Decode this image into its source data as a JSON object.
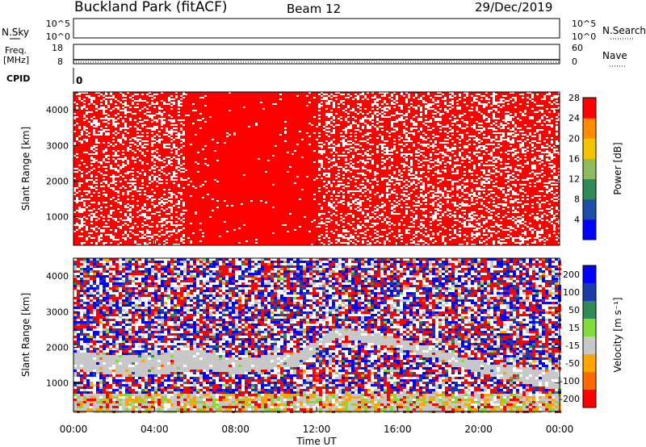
{
  "header": {
    "station": "Buckland Park (fitACF)",
    "beam": "Beam 12",
    "date": "29/Dec/2019"
  },
  "top_panels": {
    "nsky_label": "N.Sky",
    "nsky_ticks": [
      "10^5",
      "10^0"
    ],
    "nsearch_label": "N.Search",
    "nsearch_ticks": [
      "10^5",
      "10^0"
    ],
    "freq_label": "Freq.",
    "freq_unit": "[MHz]",
    "freq_ticks": [
      "18",
      "8"
    ],
    "nave_label": "Nave",
    "nave_ticks": [
      "60",
      "0"
    ],
    "cpid_label": "CPID",
    "cpid_value": "0"
  },
  "chart_data": [
    {
      "type": "heatmap",
      "title": "",
      "ylabel": "Slant Range [km]",
      "x_ticks": [
        "00:00",
        "04:00",
        "08:00",
        "12:00",
        "16:00",
        "20:00",
        "00:00"
      ],
      "y_ticks": [
        "1000",
        "2000",
        "3000",
        "4000"
      ],
      "ylim": [
        200,
        4500
      ],
      "colorbar_label": "Power [dB]",
      "colorbar_ticks": [
        "4",
        "8",
        "12",
        "16",
        "20",
        "24",
        "28"
      ],
      "colorbar_colors": [
        "#0000ff",
        "#1e4fa8",
        "#2e8b57",
        "#8fbc5a",
        "#f5c400",
        "#ff8c00",
        "#ff0000"
      ],
      "dominant_color": "#ff0000",
      "gap_intervals_ut": [
        [
          0,
          5.5
        ],
        [
          12,
          24
        ]
      ]
    },
    {
      "type": "heatmap",
      "title": "",
      "ylabel": "Slant Range [km]",
      "xlabel": "Time UT",
      "x_ticks": [
        "00:00",
        "04:00",
        "08:00",
        "12:00",
        "16:00",
        "20:00",
        "00:00"
      ],
      "y_ticks": [
        "1000",
        "2000",
        "3000",
        "4000"
      ],
      "ylim": [
        200,
        4500
      ],
      "colorbar_label": "Velocity [m s⁻¹]",
      "colorbar_ticks": [
        "200",
        "100",
        "50",
        "15",
        "-15",
        "-50",
        "-100",
        "-200"
      ],
      "colorbar_colors": [
        "#0000ff",
        "#1e3ca8",
        "#2e8b57",
        "#7fdc3c",
        "#c8c8c8",
        "#ffa500",
        "#ff6a00",
        "#ff0000"
      ],
      "ground_scatter_band_km": [
        {
          "t": 0,
          "lo": 1400,
          "hi": 1900
        },
        {
          "t": 3,
          "lo": 1200,
          "hi": 1800
        },
        {
          "t": 6,
          "lo": 1400,
          "hi": 2000
        },
        {
          "t": 8,
          "lo": 1300,
          "hi": 1700
        },
        {
          "t": 11,
          "lo": 1500,
          "hi": 1900
        },
        {
          "t": 13,
          "lo": 2300,
          "hi": 2600
        },
        {
          "t": 16,
          "lo": 2000,
          "hi": 2300
        },
        {
          "t": 20,
          "lo": 1300,
          "hi": 1600
        },
        {
          "t": 24,
          "lo": 800,
          "hi": 1400
        }
      ]
    }
  ]
}
